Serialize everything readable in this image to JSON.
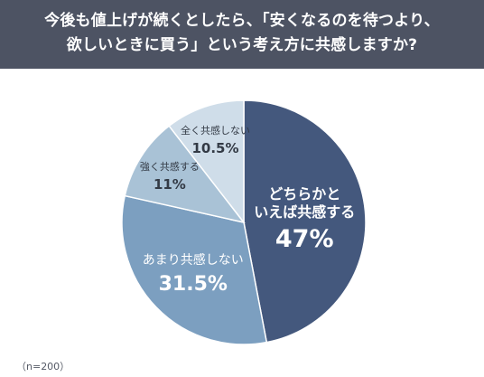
{
  "header": {
    "title_line1": "今後も値上げが続くとしたら、「安くなるのを待つより、",
    "title_line2": "欲しいときに買う」という考え方に共感しますか?",
    "background_color": "#4d5363"
  },
  "footnote": "（n=200）",
  "chart_data": {
    "type": "pie",
    "start_angle_deg": 0,
    "direction": "clockwise",
    "slices": [
      {
        "label_lines": [
          "どちらかと",
          "いえば共感する"
        ],
        "value": 47,
        "value_text": "47%",
        "color": "#44587d",
        "text_color": "#ffffff"
      },
      {
        "label_lines": [
          "あまり共感しない"
        ],
        "value": 31.5,
        "value_text": "31.5%",
        "color": "#7c9fc0",
        "text_color": "#ffffff"
      },
      {
        "label_lines": [
          "強く共感する"
        ],
        "value": 11,
        "value_text": "11%",
        "color": "#a9c2d6",
        "text_color": "#333a45"
      },
      {
        "label_lines": [
          "全く共感しない"
        ],
        "value": 10.5,
        "value_text": "10.5%",
        "color": "#cfdde9",
        "text_color": "#333a45"
      }
    ]
  }
}
